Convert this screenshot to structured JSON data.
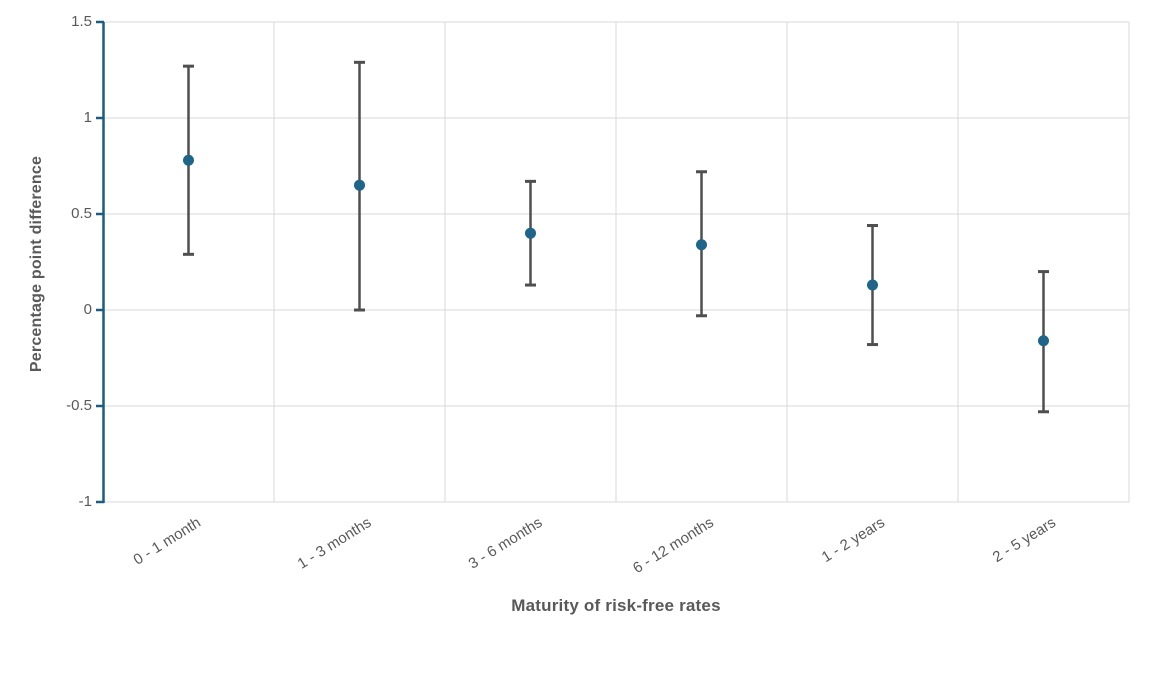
{
  "chart_data": {
    "type": "scatter",
    "subtype": "point-estimates-with-error-bars",
    "title": "",
    "xlabel": "Maturity of risk-free rates",
    "ylabel": "Percentage point difference",
    "categories": [
      "0 - 1 month",
      "1 - 3 months",
      "3 - 6 months",
      "6 - 12 months",
      "1 - 2 years",
      "2 - 5 years"
    ],
    "points": [
      {
        "category": "0 - 1 month",
        "value": 0.78,
        "ci_low": 0.29,
        "ci_high": 1.27
      },
      {
        "category": "1 - 3 months",
        "value": 0.65,
        "ci_low": 0.0,
        "ci_high": 1.29
      },
      {
        "category": "3 - 6 months",
        "value": 0.4,
        "ci_low": 0.13,
        "ci_high": 0.67
      },
      {
        "category": "6 - 12 months",
        "value": 0.34,
        "ci_low": -0.03,
        "ci_high": 0.72
      },
      {
        "category": "1 - 2 years",
        "value": 0.13,
        "ci_low": -0.18,
        "ci_high": 0.44
      },
      {
        "category": "2 - 5 years",
        "value": -0.16,
        "ci_low": -0.53,
        "ci_high": 0.2
      }
    ],
    "yticks": [
      1.5,
      1,
      0.5,
      0,
      -0.5,
      -1
    ],
    "ytick_labels": [
      "1.5",
      "1",
      "0.5",
      "0",
      "-0.5",
      "-1"
    ],
    "ylim": [
      -1,
      1.5
    ],
    "grid": true,
    "legend": false,
    "colors": {
      "marker": "#1f6589",
      "error_bar": "#4f4f4f",
      "axis": "#1a5e7e",
      "gridline": "#d9d9d9",
      "text": "#595959"
    }
  }
}
